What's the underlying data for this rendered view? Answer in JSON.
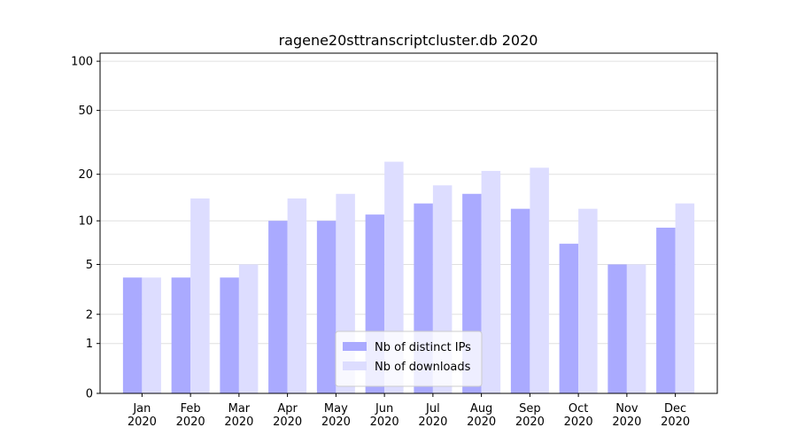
{
  "chart_data": {
    "type": "bar",
    "title": "ragene20sttranscriptcluster.db 2020",
    "categories": [
      "Jan\n2020",
      "Feb\n2020",
      "Mar\n2020",
      "Apr\n2020",
      "May\n2020",
      "Jun\n2020",
      "Jul\n2020",
      "Aug\n2020",
      "Sep\n2020",
      "Oct\n2020",
      "Nov\n2020",
      "Dec\n2020"
    ],
    "series": [
      {
        "name": "Nb of distinct IPs",
        "color": "#aaaaff",
        "values": [
          4,
          4,
          4,
          10,
          10,
          11,
          13,
          15,
          12,
          7,
          5,
          9
        ]
      },
      {
        "name": "Nb of downloads",
        "color": "#ddddff",
        "values": [
          4,
          14,
          5,
          14,
          15,
          24,
          17,
          21,
          22,
          12,
          5,
          13
        ]
      }
    ],
    "y_scale": "log1p",
    "ylim": [
      0,
      112
    ],
    "yticks": [
      0,
      1,
      2,
      5,
      10,
      20,
      50,
      100
    ],
    "grid": true,
    "legend": "lower center"
  }
}
